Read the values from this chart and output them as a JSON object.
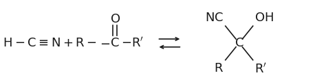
{
  "bg_color": "#ffffff",
  "fig_width": 4.74,
  "fig_height": 1.2,
  "dpi": 100,
  "font_size": 13,
  "text_color": "#1a1a1a"
}
